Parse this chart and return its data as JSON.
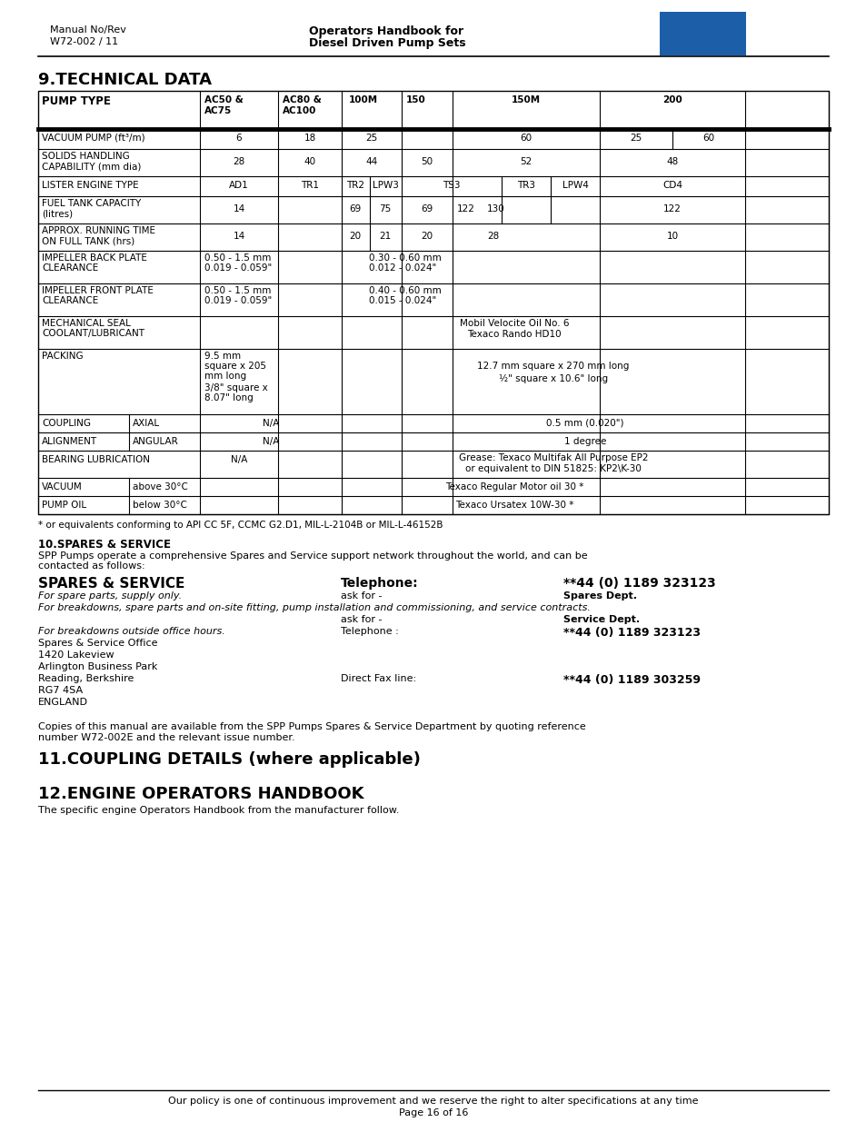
{
  "header_left_line1": "Manual No/Rev",
  "header_left_line2": "W72-002 / 11",
  "header_center_line1": "Operators Handbook for",
  "header_center_line2": "Diesel Driven Pump Sets",
  "section9_title": "9.TECHNICAL DATA",
  "section10_title": "10.SPARES & SERVICE",
  "section10_para1": "SPP Pumps operate a comprehensive Spares and Service support network throughout the world, and can be",
  "section10_para2": "contacted as follows:",
  "spares_bold": "SPARES & SERVICE",
  "tel_bold": "Telephone:",
  "tel_num_bold": "**44 (0) 1189 323123",
  "spare_parts_italic": "For spare parts, supply only.",
  "ask_for": "ask for -",
  "spares_dept_bold": "Spares Dept.",
  "breakdowns_italic": "For breakdowns, spare parts and on-site fitting, pump installation and commissioning, and service contracts.",
  "ask_for2": "ask for -",
  "service_dept_bold": "Service Dept.",
  "breakdowns_outside_italic": "For breakdowns outside office hours.",
  "telephone_label": "Telephone :",
  "tel_num2_bold": "**44 (0) 1189 323123",
  "address_lines": [
    "Spares & Service Office",
    "1420 Lakeview",
    "Arlington Business Park",
    "Reading, Berkshire",
    "RG7 4SA",
    "ENGLAND"
  ],
  "fax_label": "Direct Fax line:",
  "fax_num_bold": "**44 (0) 1189 303259",
  "copies_para1": "Copies of this manual are available from the SPP Pumps Spares & Service Department by quoting reference",
  "copies_para2": "number W72-002E and the relevant issue number.",
  "section11_title": "11.COUPLING DETAILS (where applicable)",
  "section12_title": "12.ENGINE OPERATORS HANDBOOK",
  "section12_para": "The specific engine Operators Handbook from the manufacturer follow.",
  "footer_line1": "Our policy is one of continuous improvement and we reserve the right to alter specifications at any time",
  "footer_line2": "Page 16 of 16",
  "bg_color": "#ffffff",
  "spp_blue": "#1c5fa8"
}
